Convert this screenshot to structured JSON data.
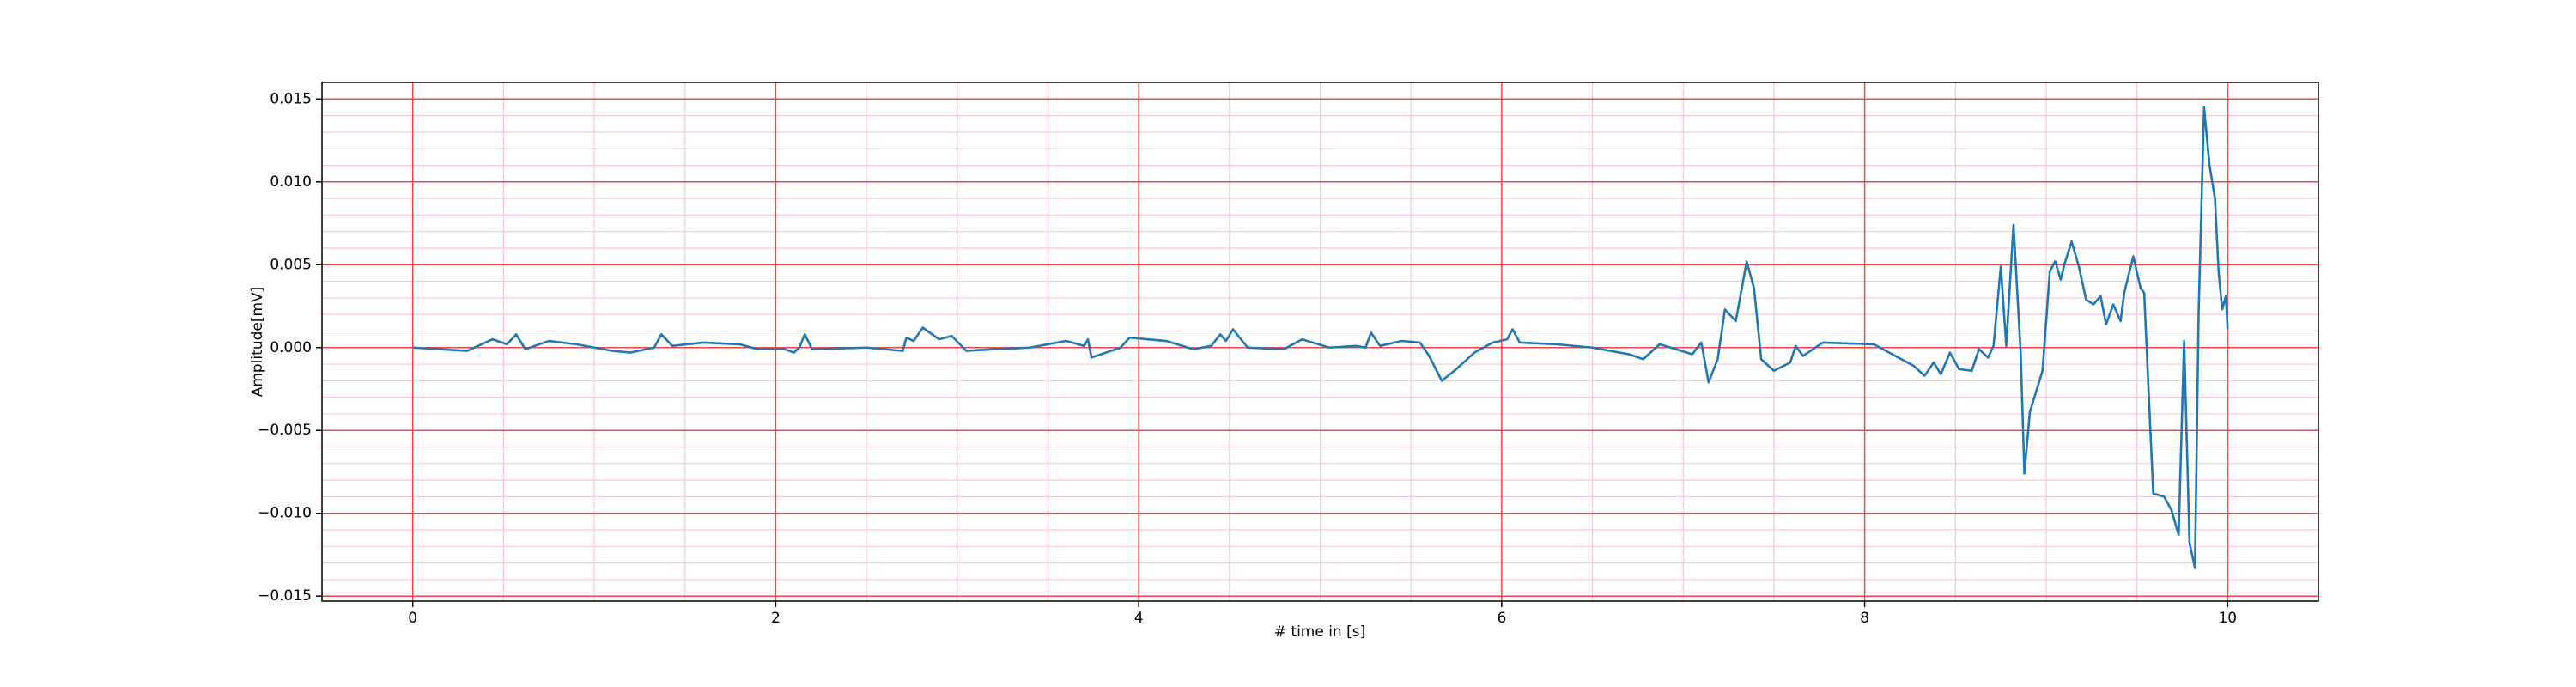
{
  "chart_data": {
    "type": "line",
    "xlabel": "# time in [s]",
    "ylabel": "Amplitude[mV]",
    "color": "#1f77b4",
    "grid": true,
    "grid_color": "#e84a4a",
    "minor_grid_color": "#f8c6dc",
    "xlim": [
      -0.5,
      10.5
    ],
    "ylim": [
      -0.0153,
      0.016
    ],
    "xticks": [
      0,
      2,
      4,
      6,
      8,
      10
    ],
    "yticks": [
      {
        "value": -0.015,
        "label": "−0.015"
      },
      {
        "value": -0.01,
        "label": "−0.010"
      },
      {
        "value": -0.005,
        "label": "−0.005"
      },
      {
        "value": 0,
        "label": "0.000"
      },
      {
        "value": 0.005,
        "label": "0.005"
      },
      {
        "value": 0.01,
        "label": "0.010"
      },
      {
        "value": 0.015,
        "label": "0.015"
      }
    ],
    "xminorticks": [
      -0.5,
      0.5,
      1,
      1.5,
      2.5,
      3,
      3.5,
      4.5,
      5,
      5.5,
      6.5,
      7,
      7.5,
      8.5,
      9,
      9.5,
      10.5
    ],
    "yminorticks": [
      -0.014,
      -0.013,
      -0.012,
      -0.011,
      -0.009,
      -0.008,
      -0.007,
      -0.006,
      -0.004,
      -0.003,
      -0.002,
      -0.001,
      0.001,
      0.002,
      0.003,
      0.004,
      0.006,
      0.007,
      0.008,
      0.009,
      0.011,
      0.012,
      0.013,
      0.014
    ],
    "x": [
      0,
      0.3,
      0.44,
      0.52,
      0.57,
      0.62,
      0.75,
      0.9,
      1.1,
      1.2,
      1.33,
      1.37,
      1.43,
      1.6,
      1.8,
      1.9,
      2.05,
      2.1,
      2.13,
      2.16,
      2.2,
      2.5,
      2.7,
      2.72,
      2.76,
      2.81,
      2.9,
      2.97,
      3.05,
      3.2,
      3.4,
      3.6,
      3.7,
      3.72,
      3.74,
      3.9,
      3.95,
      4.15,
      4.3,
      4.4,
      4.45,
      4.48,
      4.52,
      4.6,
      4.8,
      4.9,
      5.05,
      5.2,
      5.25,
      5.28,
      5.33,
      5.45,
      5.55,
      5.6,
      5.67,
      5.75,
      5.85,
      5.95,
      6.03,
      6.06,
      6.1,
      6.3,
      6.5,
      6.7,
      6.78,
      6.87,
      6.96,
      7.05,
      7.1,
      7.14,
      7.19,
      7.23,
      7.29,
      7.35,
      7.39,
      7.43,
      7.5,
      7.59,
      7.62,
      7.66,
      7.77,
      8.05,
      8.27,
      8.33,
      8.38,
      8.42,
      8.47,
      8.52,
      8.59,
      8.63,
      8.68,
      8.71,
      8.75,
      8.78,
      8.82,
      8.86,
      8.88,
      8.91,
      8.98,
      9.02,
      9.05,
      9.08,
      9.1,
      9.14,
      9.18,
      9.22,
      9.26,
      9.3,
      9.33,
      9.37,
      9.41,
      9.43,
      9.48,
      9.52,
      9.54,
      9.59,
      9.65,
      9.69,
      9.73,
      9.76,
      9.79,
      9.82,
      9.84,
      9.87,
      9.9,
      9.93,
      9.95,
      9.97,
      9.99,
      10
    ],
    "values": [
      0,
      -0.0002,
      0.0005,
      0.0002,
      0.0008,
      -0.0001,
      0.0004,
      0.0002,
      -0.0002,
      -0.0003,
      0,
      0.0008,
      0.0001,
      0.0003,
      0.0002,
      -0.0001,
      -0.0001,
      -0.0003,
      0,
      0.0008,
      -0.0001,
      0,
      -0.0002,
      0.0006,
      0.0004,
      0.0012,
      0.0005,
      0.0007,
      -0.0002,
      -0.0001,
      0,
      0.0004,
      0.0001,
      0.0005,
      -0.0006,
      0,
      0.0006,
      0.0004,
      -0.0001,
      0.0001,
      0.0008,
      0.0004,
      0.0011,
      0,
      -0.0001,
      0.0005,
      0,
      0.0001,
      0,
      0.0009,
      0.0001,
      0.0004,
      0.0003,
      -0.0005,
      -0.002,
      -0.0013,
      -0.0003,
      0.0003,
      0.0005,
      0.0011,
      0.0003,
      0.0002,
      0,
      -0.0004,
      -0.0007,
      0.0002,
      -0.0001,
      -0.0004,
      0.0003,
      -0.0021,
      -0.0007,
      0.0023,
      0.0016,
      0.0052,
      0.0036,
      -0.0007,
      -0.0014,
      -0.0009,
      0.0001,
      -0.0005,
      0.0003,
      0.0002,
      -0.0011,
      -0.0017,
      -0.0009,
      -0.0016,
      -0.0003,
      -0.0013,
      -0.0014,
      -0.0001,
      -0.0006,
      0.0001,
      0.0049,
      0.0001,
      0.0074,
      -0.0004,
      -0.0076,
      -0.0039,
      -0.0014,
      0.0046,
      0.0052,
      0.0041,
      0.005,
      0.0064,
      0.0049,
      0.0029,
      0.0026,
      0.0031,
      0.0014,
      0.0026,
      0.0016,
      0.0033,
      0.0055,
      0.0036,
      0.0033,
      -0.0088,
      -0.009,
      -0.0098,
      -0.0113,
      0.0004,
      -0.0118,
      -0.0133,
      0.0021,
      0.0145,
      0.011,
      0.009,
      0.0046,
      0.0023,
      0.0031,
      0.0011
    ]
  }
}
